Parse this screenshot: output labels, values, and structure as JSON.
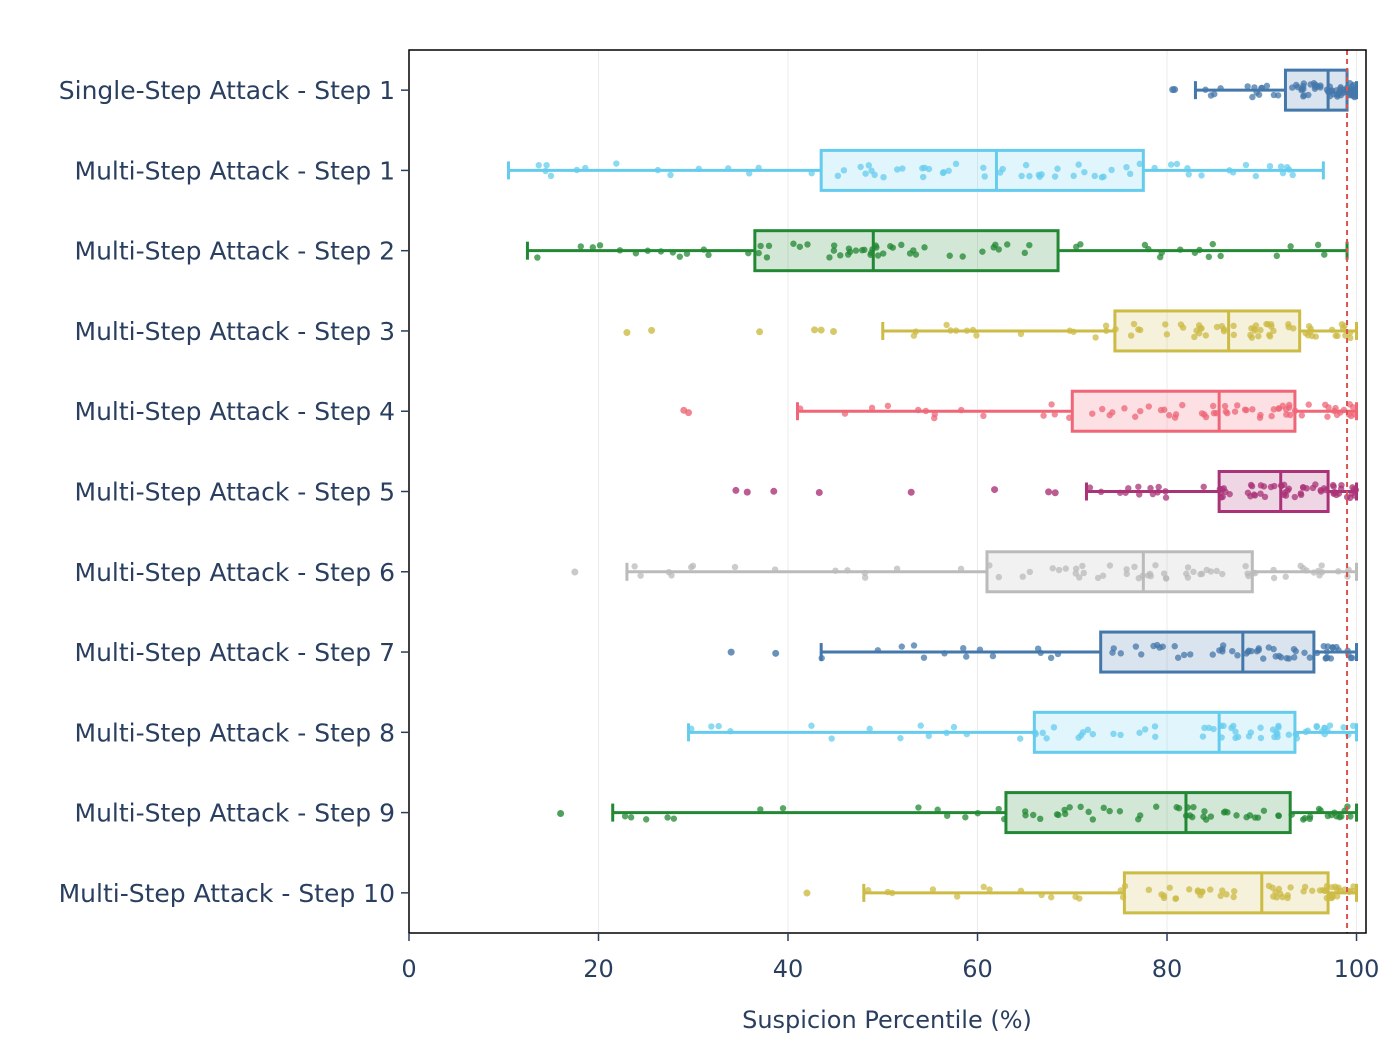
{
  "chart_data": {
    "type": "box",
    "title": "",
    "xlabel": "Suspicion Percentile (%)",
    "ylabel": "",
    "xlim": [
      0,
      101
    ],
    "xticks": [
      "0",
      "20",
      "40",
      "60",
      "80",
      "100"
    ],
    "grid": "vertical",
    "reference_line": {
      "x": 99,
      "style": "dashed",
      "color": "#d9534f"
    },
    "categories": [
      "Single-Step Attack - Step 1",
      "Multi-Step Attack - Step 1",
      "Multi-Step Attack - Step 2",
      "Multi-Step Attack - Step 3",
      "Multi-Step Attack - Step 4",
      "Multi-Step Attack - Step 5",
      "Multi-Step Attack - Step 6",
      "Multi-Step Attack - Step 7",
      "Multi-Step Attack - Step 8",
      "Multi-Step Attack - Step 9",
      "Multi-Step Attack - Step 10"
    ],
    "series": [
      {
        "color": "#4477AA",
        "whisker_low": 83,
        "q1": 92.5,
        "median": 97,
        "q3": 99,
        "whisker_high": 100,
        "outliers": [
          80.8,
          80.6
        ]
      },
      {
        "color": "#66CCEE",
        "whisker_low": 10.5,
        "q1": 43.5,
        "median": 62,
        "q3": 77.5,
        "whisker_high": 96.5,
        "outliers": []
      },
      {
        "color": "#228833",
        "whisker_low": 12.5,
        "q1": 36.5,
        "median": 49,
        "q3": 68.5,
        "whisker_high": 99,
        "outliers": []
      },
      {
        "color": "#CCBB44",
        "whisker_low": 50,
        "q1": 74.5,
        "median": 86.5,
        "q3": 94,
        "whisker_high": 100,
        "outliers": [
          23,
          25.6,
          37,
          42.8,
          43.5,
          44.8
        ]
      },
      {
        "color": "#EE6677",
        "whisker_low": 41,
        "q1": 70,
        "median": 85.5,
        "q3": 93.5,
        "whisker_high": 100,
        "outliers": [
          29,
          29.5
        ]
      },
      {
        "color": "#AA3377",
        "whisker_low": 71.5,
        "q1": 85.5,
        "median": 92,
        "q3": 97,
        "whisker_high": 100,
        "outliers": [
          34.5,
          35.7,
          38.5,
          43.3,
          53,
          61.8,
          67.5,
          68.2
        ]
      },
      {
        "color": "#BBBBBB",
        "whisker_low": 23,
        "q1": 61,
        "median": 77.5,
        "q3": 89,
        "whisker_high": 100,
        "outliers": [
          17.5
        ]
      },
      {
        "color": "#4477AA",
        "whisker_low": 43.5,
        "q1": 73,
        "median": 88,
        "q3": 95.5,
        "whisker_high": 100,
        "outliers": [
          34,
          38.7
        ]
      },
      {
        "color": "#66CCEE",
        "whisker_low": 29.5,
        "q1": 66,
        "median": 85.5,
        "q3": 93.5,
        "whisker_high": 100,
        "outliers": []
      },
      {
        "color": "#228833",
        "whisker_low": 21.5,
        "q1": 63,
        "median": 82,
        "q3": 93,
        "whisker_high": 100,
        "outliers": [
          16
        ]
      },
      {
        "color": "#CCBB44",
        "whisker_low": 48,
        "q1": 75.5,
        "median": 90,
        "q3": 97,
        "whisker_high": 100,
        "outliers": [
          42
        ]
      }
    ]
  }
}
